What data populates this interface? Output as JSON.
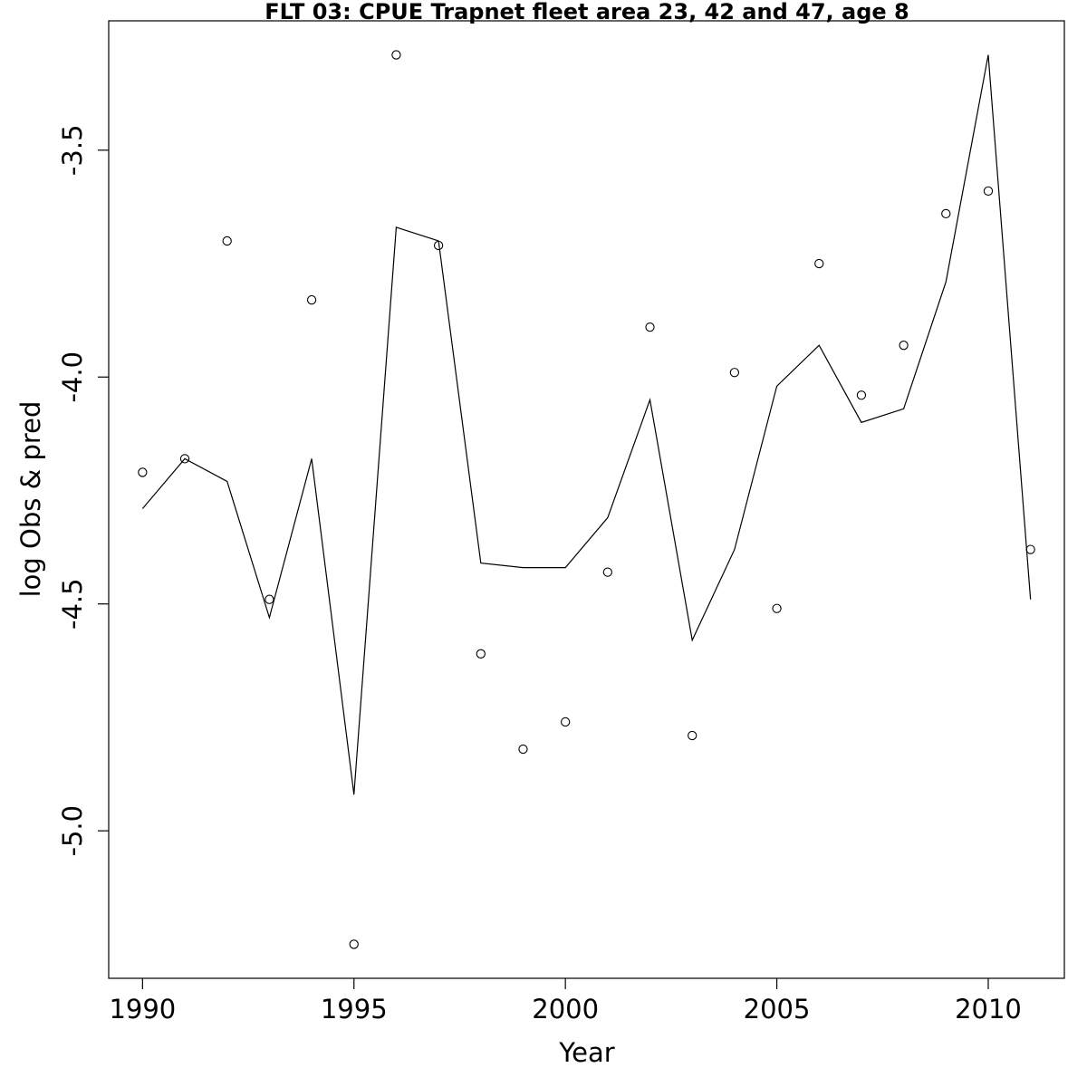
{
  "chart_data": {
    "type": "line",
    "title": "FLT 03: CPUE Trapnet fleet area 23, 42 and 47, age 8",
    "xlabel": "Year",
    "ylabel": "log Obs & pred",
    "xlim": [
      1989.2,
      2011.8
    ],
    "ylim": [
      -5.325,
      -3.215
    ],
    "x_ticks": [
      1990,
      1995,
      2000,
      2005,
      2010
    ],
    "y_ticks": [
      -5.0,
      -4.5,
      -4.0,
      -3.5
    ],
    "x_tick_labels": [
      "1990",
      "1995",
      "2000",
      "2005",
      "2010"
    ],
    "y_tick_labels": [
      "-5.0",
      "-4.5",
      "-4.0",
      "-3.5"
    ],
    "grid": false,
    "series": [
      {
        "role": "predicted",
        "style": "line",
        "x": [
          1990,
          1991,
          1992,
          1993,
          1994,
          1995,
          1996,
          1997,
          1998,
          1999,
          2000,
          2001,
          2002,
          2003,
          2004,
          2005,
          2006,
          2007,
          2008,
          2009,
          2010,
          2011
        ],
        "values": [
          -4.29,
          -4.18,
          -4.23,
          -4.53,
          -4.18,
          -4.92,
          -3.67,
          -3.7,
          -4.41,
          -4.42,
          -4.42,
          -4.31,
          -4.05,
          -4.58,
          -4.38,
          -4.02,
          -3.93,
          -4.1,
          -4.07,
          -3.79,
          -3.29,
          -4.49
        ]
      },
      {
        "role": "observed",
        "style": "points",
        "x": [
          1990,
          1991,
          1992,
          1993,
          1994,
          1995,
          1996,
          1997,
          1998,
          1999,
          2000,
          2001,
          2002,
          2003,
          2004,
          2005,
          2006,
          2007,
          2008,
          2009,
          2010,
          2011
        ],
        "values": [
          -4.21,
          -4.18,
          -3.7,
          -4.49,
          -3.83,
          -5.25,
          -3.29,
          -3.71,
          -4.61,
          -4.82,
          -4.76,
          -4.43,
          -3.89,
          -4.79,
          -3.99,
          -4.51,
          -3.75,
          -4.04,
          -3.93,
          -3.64,
          -3.59,
          -4.38
        ]
      }
    ]
  }
}
